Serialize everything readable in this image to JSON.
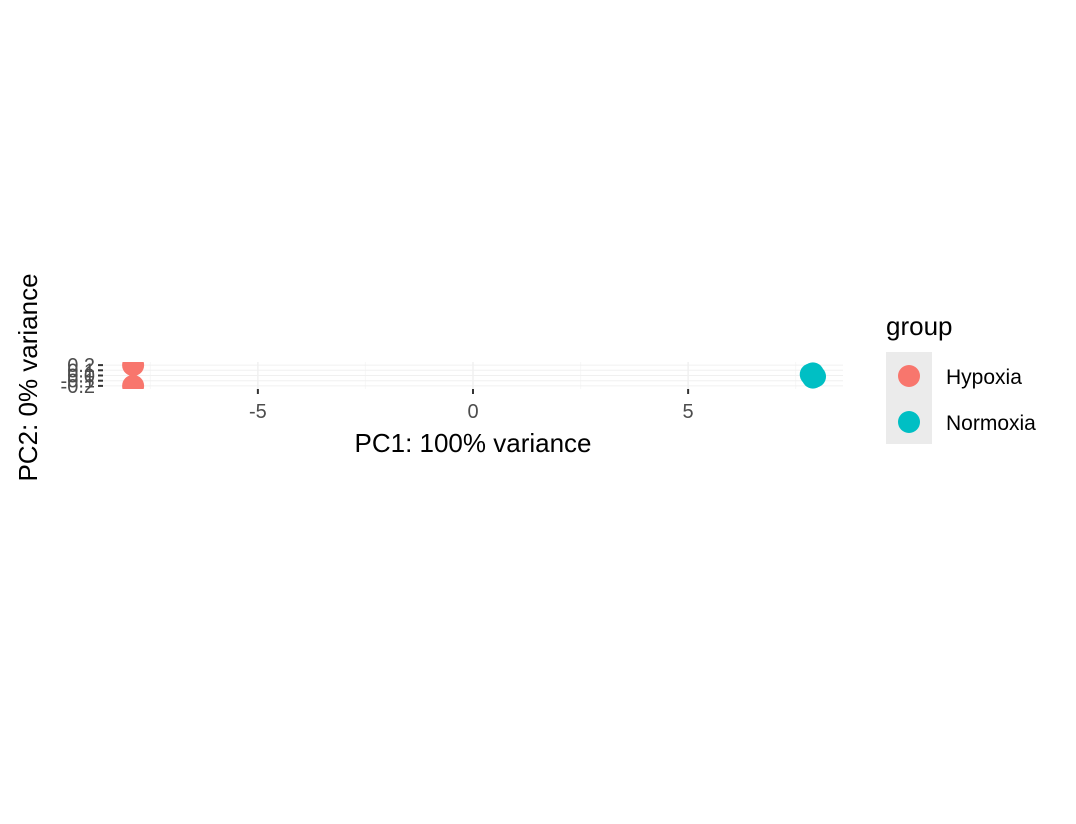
{
  "chart_data": {
    "type": "scatter",
    "xlabel": "PC1: 100% variance",
    "ylabel": "PC2: 0% variance",
    "xlim": [
      -8.6,
      8.6
    ],
    "ylim": [
      -0.26,
      0.26
    ],
    "x_ticks": [
      -5,
      0,
      5
    ],
    "x_tick_labels": [
      "-5",
      "0",
      "5"
    ],
    "y_ticks": [
      -0.2,
      -0.1,
      0.0,
      0.1,
      0.2
    ],
    "y_tick_labels": [
      "-0.2",
      "-0.1",
      "0.0",
      "0.1",
      "0.2"
    ],
    "grid": true,
    "legend": {
      "title": "group",
      "position": "right",
      "entries": [
        {
          "name": "Hypoxia",
          "color": "#F8766D"
        },
        {
          "name": "Normoxia",
          "color": "#00BFC4"
        }
      ]
    },
    "series": [
      {
        "name": "Hypoxia",
        "color": "#F8766D",
        "points": [
          [
            -7.9,
            0.2
          ],
          [
            -7.9,
            -0.2
          ]
        ]
      },
      {
        "name": "Normoxia",
        "color": "#00BFC4",
        "points": [
          [
            7.9,
            0.04
          ],
          [
            7.9,
            0.0
          ],
          [
            7.9,
            -0.04
          ],
          [
            7.85,
            0.02
          ],
          [
            7.95,
            -0.02
          ]
        ]
      }
    ]
  }
}
